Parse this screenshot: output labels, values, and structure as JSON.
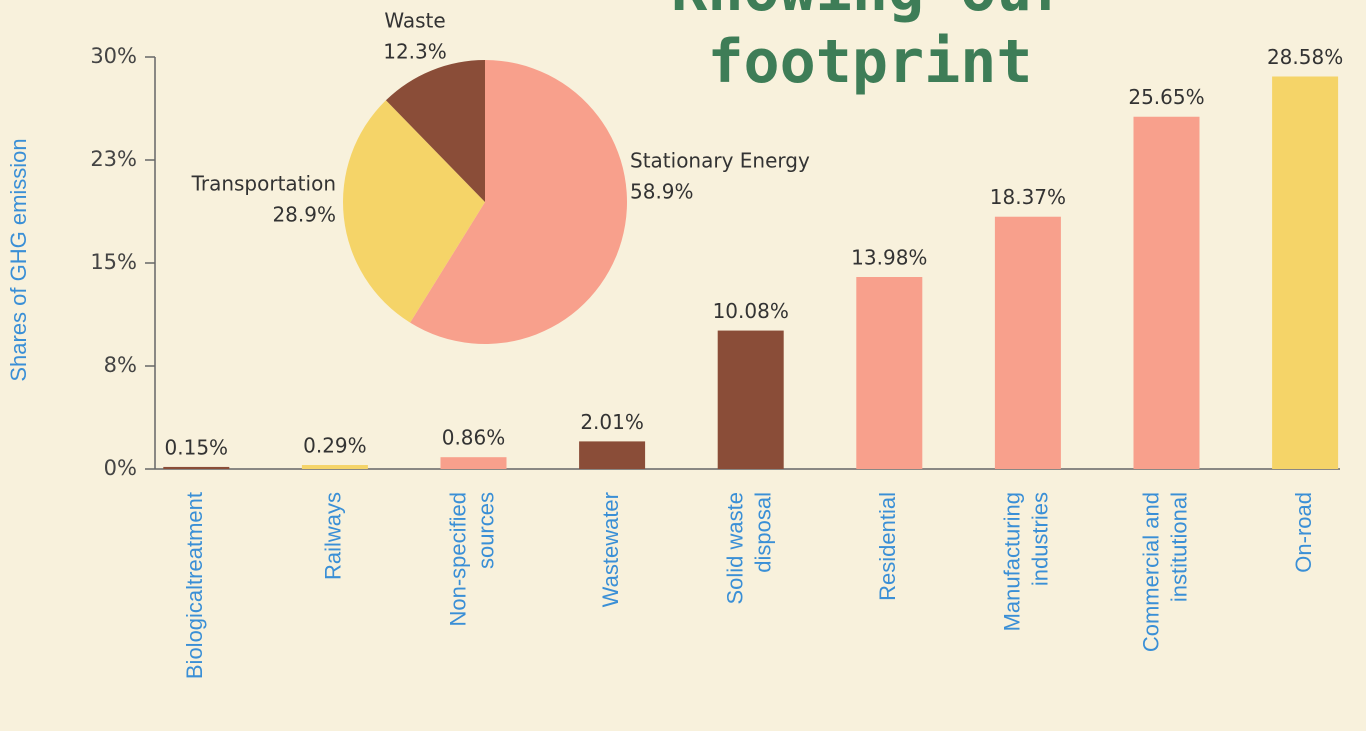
{
  "chart_data": [
    {
      "type": "bar",
      "title": [
        "Knowing our",
        "footprint"
      ],
      "ylabel": "Shares of GHG emission",
      "categories": [
        [
          "Biologicaltreatment"
        ],
        [
          "Railways"
        ],
        [
          "Non-specified",
          "sources"
        ],
        [
          "Wastewater"
        ],
        [
          "Solid waste",
          "disposal"
        ],
        [
          "Residential"
        ],
        [
          "Manufacturing",
          "industries"
        ],
        [
          "Commercial and",
          "institutional"
        ],
        [
          "On-road"
        ]
      ],
      "values": [
        0.15,
        0.29,
        0.86,
        2.01,
        10.08,
        13.98,
        18.37,
        25.65,
        28.58
      ],
      "value_labels": [
        "0.15%",
        "0.29%",
        "0.86%",
        "2.01%",
        "10.08%",
        "13.98%",
        "18.37%",
        "25.65%",
        "28.58%"
      ],
      "colors": [
        "#8a4d38",
        "#f5d468",
        "#f8a08c",
        "#8a4d38",
        "#8a4d38",
        "#f8a08c",
        "#f8a08c",
        "#f8a08c",
        "#f5d468"
      ],
      "ylim": [
        0,
        30
      ],
      "yticks": [
        {
          "value": 0,
          "label": "0%"
        },
        {
          "value": 7.5,
          "label": "8%"
        },
        {
          "value": 15,
          "label": "15%"
        },
        {
          "value": 22.5,
          "label": "23%"
        },
        {
          "value": 30,
          "label": "30%"
        }
      ]
    },
    {
      "type": "pie",
      "categories": [
        "Stationary Energy",
        "Transportation",
        "Waste"
      ],
      "values": [
        58.9,
        28.9,
        12.3
      ],
      "value_labels": [
        "58.9%",
        "28.9%",
        "12.3%"
      ],
      "colors": [
        "#f8a08c",
        "#f5d468",
        "#8a4d38"
      ]
    }
  ]
}
